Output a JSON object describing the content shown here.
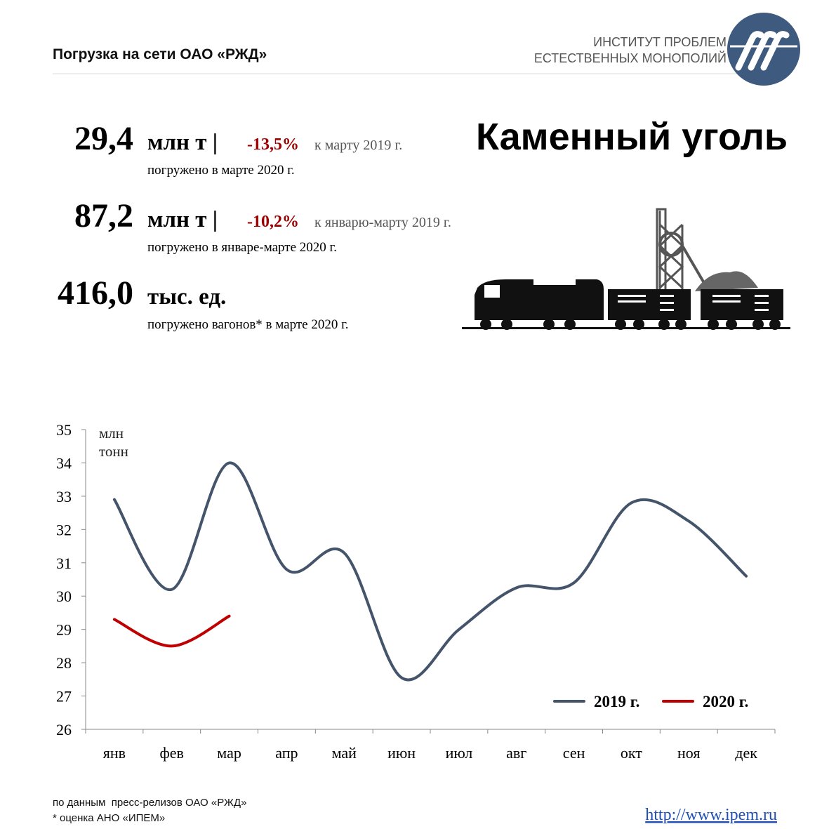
{
  "header": {
    "title": "Погрузка на сети ОАО «РЖД»",
    "org_line1": "ИНСТИТУТ ПРОБЛЕМ",
    "org_line2": "ЕСТЕСТВЕННЫХ МОНОПОЛИЙ"
  },
  "heading": "Каменный уголь",
  "stats": [
    {
      "value": "29,4",
      "unit": "млн т |",
      "change": "-13,5%",
      "compare": "к марту 2019 г.",
      "note": "погружено в марте 2020 г."
    },
    {
      "value": "87,2",
      "unit": "млн т |",
      "change": "-10,2%",
      "compare": "к январю-марту 2019 г.",
      "note": "погружено в январе-марте 2020 г."
    },
    {
      "value": "416,0",
      "unit": "тыс. ед.",
      "note": "погружено вагонов* в марте 2020 г."
    }
  ],
  "chart_data": {
    "type": "line",
    "ylabel": "млн тонн",
    "categories": [
      "янв",
      "фев",
      "мар",
      "апр",
      "май",
      "июн",
      "июл",
      "авг",
      "сен",
      "окт",
      "ноя",
      "дек"
    ],
    "series": [
      {
        "name": "2019 г.",
        "color": "#44546a",
        "values": [
          32.9,
          30.2,
          34.0,
          30.8,
          31.3,
          27.55,
          29.0,
          30.25,
          30.4,
          32.8,
          32.25,
          30.6
        ]
      },
      {
        "name": "2020 г.",
        "color": "#c00000",
        "values": [
          29.3,
          28.5,
          29.4,
          null,
          null,
          null,
          null,
          null,
          null,
          null,
          null,
          null
        ]
      }
    ],
    "ylim": [
      26,
      35
    ],
    "yticks": [
      26,
      27,
      28,
      29,
      30,
      31,
      32,
      33,
      34,
      35
    ],
    "legend": "lower right"
  },
  "footer": {
    "source": "по данным  пресс-релизов ОАО «РЖД»",
    "note": "* оценка АНО «ИПЕМ»",
    "link": "http://www.ipem.ru"
  }
}
